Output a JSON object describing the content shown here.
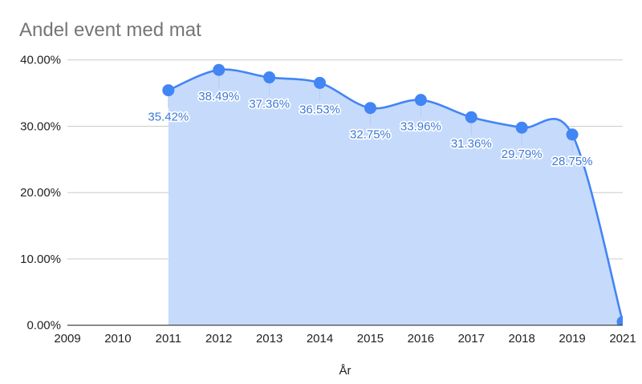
{
  "chart_data": {
    "type": "area",
    "title": "Andel event med mat",
    "xlabel": "År",
    "ylabel": "",
    "categories": [
      "2009",
      "2010",
      "2011",
      "2012",
      "2013",
      "2014",
      "2015",
      "2016",
      "2017",
      "2018",
      "2019",
      "2021"
    ],
    "series": [
      {
        "name": "Andel event med mat",
        "values": [
          null,
          null,
          35.42,
          38.49,
          37.36,
          36.53,
          32.75,
          33.96,
          31.36,
          29.79,
          28.75,
          0.5
        ],
        "data_labels": [
          null,
          null,
          "35.42%",
          "38.49%",
          "37.36%",
          "36.53%",
          "32.75%",
          "33.96%",
          "31.36%",
          "29.79%",
          "28.75%",
          null
        ]
      }
    ],
    "y_tick_values": [
      0,
      10,
      20,
      30,
      40
    ],
    "y_ticks": [
      "0.00%",
      "10.00%",
      "20.00%",
      "30.00%",
      "40.00%"
    ],
    "ylim": [
      0,
      40
    ],
    "grid": true,
    "legend": "none",
    "smooth": true,
    "point_markers": true,
    "colors": {
      "line": "#4285f4",
      "area": "#c6dafc",
      "point": "#4285f4",
      "data_label": "#3c78d8",
      "leader": "#b9cbe9",
      "title": "#757575",
      "axis_text": "#222222",
      "grid": "#cccccc",
      "baseline": "#333333"
    }
  }
}
